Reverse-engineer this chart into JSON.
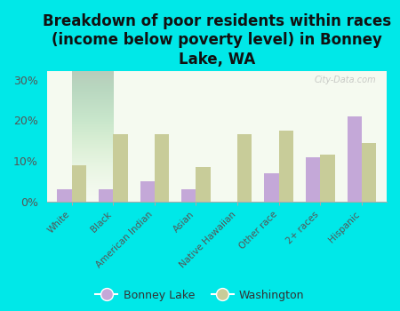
{
  "title": "Breakdown of poor residents within races\n(income below poverty level) in Bonney\nLake, WA",
  "categories": [
    "White",
    "Black",
    "American Indian",
    "Asian",
    "Native Hawaiian",
    "Other race",
    "2+ races",
    "Hispanic"
  ],
  "bonney_lake": [
    3.0,
    3.0,
    5.0,
    3.0,
    0.0,
    7.0,
    11.0,
    21.0
  ],
  "washington": [
    9.0,
    16.5,
    16.5,
    8.5,
    16.5,
    17.5,
    11.5,
    14.5
  ],
  "bonney_lake_color": "#c4a8d8",
  "washington_color": "#c8cc99",
  "background_color": "#00e8e8",
  "plot_bg_color": "#e8f5e0",
  "ylim": [
    0,
    32
  ],
  "yticks": [
    0,
    10,
    20,
    30
  ],
  "ytick_labels": [
    "0%",
    "10%",
    "20%",
    "30%"
  ],
  "bar_width": 0.35,
  "title_fontsize": 12,
  "watermark": "City-Data.com",
  "legend_label1": "Bonney Lake",
  "legend_label2": "Washington"
}
